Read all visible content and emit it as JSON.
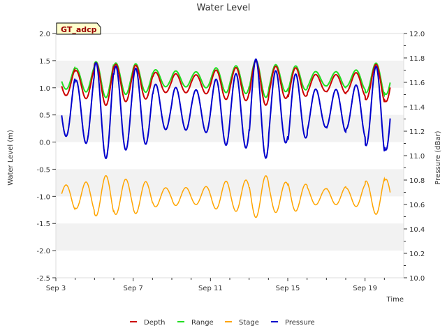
{
  "chart_data": {
    "type": "line",
    "title": "Water Level",
    "site_label": "GT_adcp",
    "xlabel": "Time",
    "ylabel_left": "Water Level (m)",
    "ylabel_right": "Pressure (dBar)",
    "xlim": [
      0,
      18
    ],
    "ylim_left": [
      -2.5,
      2.0
    ],
    "ylim_right": [
      10.0,
      12.0
    ],
    "x_ticks": [
      {
        "label": "Sep 3",
        "value": 0
      },
      {
        "label": "Sep 7",
        "value": 4
      },
      {
        "label": "Sep 11",
        "value": 8
      },
      {
        "label": "Sep 15",
        "value": 12
      },
      {
        "label": "Sep 19",
        "value": 16
      }
    ],
    "y_ticks_left": [
      "2.0",
      "1.5",
      "1.0",
      "0.5",
      "0.0",
      "-0.5",
      "-1.0",
      "-1.5",
      "-2.0",
      "-2.5"
    ],
    "y_ticks_right": [
      "12.0",
      "11.8",
      "11.6",
      "11.4",
      "11.2",
      "11.0",
      "10.8",
      "10.6",
      "10.4",
      "10.2",
      "10.0"
    ],
    "bands": [
      [
        1.0,
        1.5
      ],
      [
        0.0,
        0.5
      ],
      [
        -1.0,
        -0.5
      ],
      [
        -2.0,
        -1.5
      ]
    ],
    "series": [
      {
        "name": "Depth",
        "color": "#cc0000",
        "axis": "left",
        "mean": 1.08,
        "amp": 0.38,
        "start": 0.3,
        "end": 17.3
      },
      {
        "name": "Range",
        "color": "#22dd22",
        "axis": "left",
        "mean": 1.16,
        "amp": 0.32,
        "start": 0.3,
        "end": 17.3
      },
      {
        "name": "Stage",
        "color": "#ffa500",
        "axis": "left",
        "mean": -1.0,
        "amp": 0.36,
        "start": 0.3,
        "end": 17.3
      },
      {
        "name": "Pressure",
        "color": "#0000cc",
        "axis": "right",
        "mean": 11.38,
        "amp": 0.38,
        "start": 0.3,
        "end": 17.3
      }
    ],
    "legend": [
      "Depth",
      "Range",
      "Stage",
      "Pressure"
    ],
    "legend_position": "bottom"
  }
}
